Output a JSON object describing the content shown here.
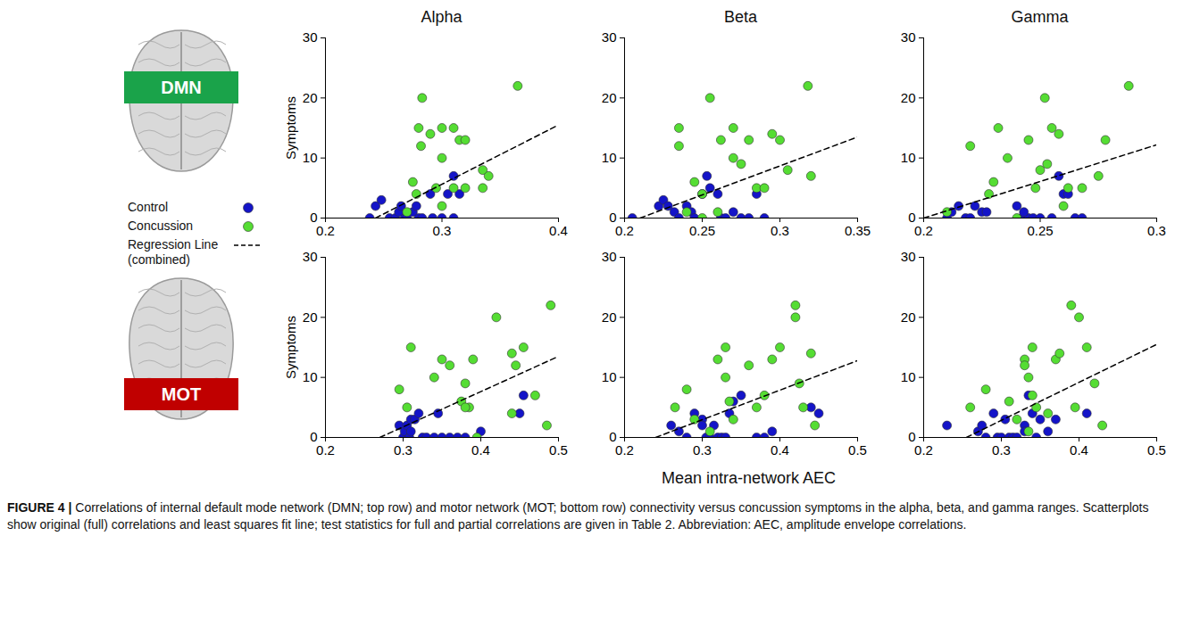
{
  "chart_data": {
    "type": "scatter",
    "columns": [
      "Alpha",
      "Beta",
      "Gamma"
    ],
    "rows": [
      {
        "label": "DMN",
        "color": "#1aa34a"
      },
      {
        "label": "MOT",
        "color": "#c00000"
      }
    ],
    "xlabel": "Mean intra-network AEC",
    "ylim": [
      0,
      30
    ],
    "yticks": [
      0,
      10,
      20,
      30
    ],
    "series": [
      {
        "name": "Control",
        "color": "#1414c8",
        "marker": "circle"
      },
      {
        "name": "Concussion",
        "color": "#55dd33",
        "marker": "circle"
      },
      {
        "name": "Regression Line (combined)",
        "color": "#000000",
        "type": "line",
        "line_style": "dashed"
      }
    ],
    "panels": [
      {
        "ylabel": "Symptoms",
        "xlim": [
          0.2,
          0.4
        ],
        "xticks": [
          0.2,
          0.3,
          0.4
        ],
        "series_data": [
          {
            "x": [
              0.238,
              0.243,
              0.248,
              0.255,
              0.26,
              0.263,
              0.265,
              0.268,
              0.27,
              0.275,
              0.278,
              0.28,
              0.283,
              0.29,
              0.292,
              0.3,
              0.305,
              0.31,
              0.31,
              0.315
            ],
            "y": [
              0,
              2,
              3,
              0,
              0,
              1,
              2,
              0,
              0,
              1,
              2,
              0,
              0,
              4,
              0,
              0,
              4,
              7,
              0,
              4
            ]
          },
          {
            "x": [
              0.283,
              0.28,
              0.282,
              0.29,
              0.3,
              0.31,
              0.315,
              0.32,
              0.3,
              0.295,
              0.31,
              0.32,
              0.335,
              0.34,
              0.335,
              0.365,
              0.275,
              0.278,
              0.27,
              0.3
            ],
            "y": [
              20,
              15,
              12,
              14,
              15,
              15,
              13,
              13,
              10,
              5,
              5,
              5,
              8,
              7,
              5,
              22,
              6,
              4,
              1,
              2
            ]
          },
          {
            "x": [
              0.243,
              0.4
            ],
            "y": [
              0,
              15.5
            ]
          }
        ]
      },
      {
        "xlim": [
          0.2,
          0.35
        ],
        "xticks": [
          0.2,
          0.25,
          0.3,
          0.35
        ],
        "series_data": [
          {
            "x": [
              0.205,
              0.222,
              0.225,
              0.228,
              0.232,
              0.235,
              0.24,
              0.243,
              0.245,
              0.25,
              0.253,
              0.255,
              0.26,
              0.262,
              0.265,
              0.27,
              0.275,
              0.28,
              0.285,
              0.29
            ],
            "y": [
              0,
              2,
              3,
              2,
              1,
              0,
              2,
              1,
              0,
              4,
              7,
              5,
              4,
              0,
              0,
              1,
              0,
              0,
              4,
              0
            ]
          },
          {
            "x": [
              0.235,
              0.235,
              0.245,
              0.25,
              0.255,
              0.26,
              0.262,
              0.27,
              0.27,
              0.275,
              0.28,
              0.285,
              0.29,
              0.295,
              0.3,
              0.305,
              0.318,
              0.32,
              0.24,
              0.25
            ],
            "y": [
              15,
              12,
              6,
              4,
              20,
              1,
              13,
              15,
              10,
              9,
              13,
              5,
              5,
              14,
              13,
              8,
              22,
              7,
              1,
              0
            ]
          },
          {
            "x": [
              0.21,
              0.35
            ],
            "y": [
              0,
              13.5
            ]
          }
        ]
      },
      {
        "xlim": [
          0.2,
          0.3
        ],
        "xticks": [
          0.2,
          0.25,
          0.3
        ],
        "series_data": [
          {
            "x": [
              0.21,
              0.212,
              0.215,
              0.218,
              0.22,
              0.222,
              0.225,
              0.227,
              0.24,
              0.242,
              0.245,
              0.247,
              0.25,
              0.255,
              0.258,
              0.26,
              0.262,
              0.265,
              0.268,
              0.243
            ],
            "y": [
              0,
              1,
              2,
              0,
              0,
              2,
              1,
              1,
              2,
              0,
              0,
              0,
              0,
              0,
              7,
              4,
              4,
              0,
              0,
              1
            ]
          },
          {
            "x": [
              0.21,
              0.22,
              0.228,
              0.23,
              0.232,
              0.236,
              0.24,
              0.245,
              0.248,
              0.25,
              0.252,
              0.253,
              0.255,
              0.258,
              0.26,
              0.262,
              0.268,
              0.275,
              0.278,
              0.288
            ],
            "y": [
              1,
              12,
              4,
              6,
              15,
              10,
              0,
              13,
              5,
              8,
              20,
              9,
              15,
              14,
              2,
              5,
              5,
              7,
              13,
              22
            ]
          },
          {
            "x": [
              0.2,
              0.3
            ],
            "y": [
              0,
              12.2
            ]
          }
        ]
      },
      {
        "ylabel": "Symptoms",
        "xlim": [
          0.2,
          0.5
        ],
        "xticks": [
          0.2,
          0.3,
          0.4,
          0.5
        ],
        "series_data": [
          {
            "x": [
              0.295,
              0.3,
              0.302,
              0.305,
              0.308,
              0.31,
              0.315,
              0.32,
              0.325,
              0.33,
              0.34,
              0.345,
              0.35,
              0.36,
              0.37,
              0.38,
              0.4,
              0.45,
              0.455,
              0.31
            ],
            "y": [
              2,
              0,
              1,
              2,
              0,
              3,
              3,
              4,
              0,
              0,
              0,
              4,
              0,
              0,
              0,
              0,
              1,
              4,
              7,
              1
            ]
          },
          {
            "x": [
              0.295,
              0.305,
              0.31,
              0.34,
              0.35,
              0.375,
              0.38,
              0.385,
              0.39,
              0.395,
              0.36,
              0.42,
              0.44,
              0.44,
              0.445,
              0.455,
              0.47,
              0.485,
              0.49,
              0.38
            ],
            "y": [
              8,
              5,
              15,
              10,
              13,
              6,
              9,
              5,
              13,
              0,
              12,
              20,
              4,
              14,
              12,
              15,
              7,
              2,
              22,
              5
            ]
          },
          {
            "x": [
              0.27,
              0.5
            ],
            "y": [
              0,
              13.5
            ]
          }
        ]
      },
      {
        "xlim": [
          0.2,
          0.5
        ],
        "xticks": [
          0.2,
          0.3,
          0.4,
          0.5
        ],
        "series_data": [
          {
            "x": [
              0.26,
              0.27,
              0.28,
              0.29,
              0.3,
              0.305,
              0.31,
              0.315,
              0.32,
              0.325,
              0.33,
              0.335,
              0.34,
              0.35,
              0.37,
              0.38,
              0.39,
              0.44,
              0.45,
              0.3
            ],
            "y": [
              2,
              1,
              0,
              4,
              3,
              0,
              0,
              2,
              0,
              0,
              0,
              4,
              6,
              7,
              0,
              0,
              1,
              5,
              4,
              2
            ]
          },
          {
            "x": [
              0.265,
              0.28,
              0.29,
              0.31,
              0.32,
              0.33,
              0.33,
              0.335,
              0.34,
              0.36,
              0.37,
              0.38,
              0.39,
              0.4,
              0.42,
              0.42,
              0.425,
              0.43,
              0.44,
              0.445
            ],
            "y": [
              5,
              8,
              3,
              1,
              13,
              15,
              10,
              6,
              3,
              12,
              5,
              7,
              13,
              15,
              22,
              20,
              9,
              5,
              14,
              2
            ]
          },
          {
            "x": [
              0.24,
              0.5
            ],
            "y": [
              0,
              12.8
            ]
          }
        ]
      },
      {
        "xlim": [
          0.2,
          0.5
        ],
        "xticks": [
          0.2,
          0.3,
          0.4,
          0.5
        ],
        "series_data": [
          {
            "x": [
              0.23,
              0.27,
              0.275,
              0.28,
              0.29,
              0.295,
              0.3,
              0.305,
              0.31,
              0.315,
              0.32,
              0.33,
              0.335,
              0.34,
              0.345,
              0.35,
              0.36,
              0.37,
              0.41,
              0.33
            ],
            "y": [
              2,
              1,
              2,
              0,
              4,
              0,
              0,
              3,
              0,
              0,
              0,
              2,
              7,
              4,
              0,
              3,
              1,
              3,
              4,
              1
            ]
          },
          {
            "x": [
              0.26,
              0.28,
              0.31,
              0.32,
              0.33,
              0.33,
              0.335,
              0.34,
              0.34,
              0.345,
              0.37,
              0.375,
              0.39,
              0.395,
              0.4,
              0.41,
              0.42,
              0.43,
              0.335,
              0.36
            ],
            "y": [
              5,
              8,
              6,
              3,
              13,
              12,
              10,
              15,
              7,
              5,
              13,
              14,
              22,
              5,
              20,
              15,
              9,
              2,
              1,
              4
            ]
          },
          {
            "x": [
              0.255,
              0.5
            ],
            "y": [
              0,
              15.5
            ]
          }
        ]
      }
    ]
  },
  "caption": {
    "label": "FIGURE 4 |",
    "text": "Correlations of internal default mode network (DMN; top row) and motor network (MOT; bottom row) connectivity versus concussion symptoms in the alpha, beta, and gamma ranges. Scatterplots show original (full) correlations and least squares fit line; test statistics for full and partial correlations are given in Table 2. Abbreviation: AEC, amplitude envelope correlations."
  }
}
